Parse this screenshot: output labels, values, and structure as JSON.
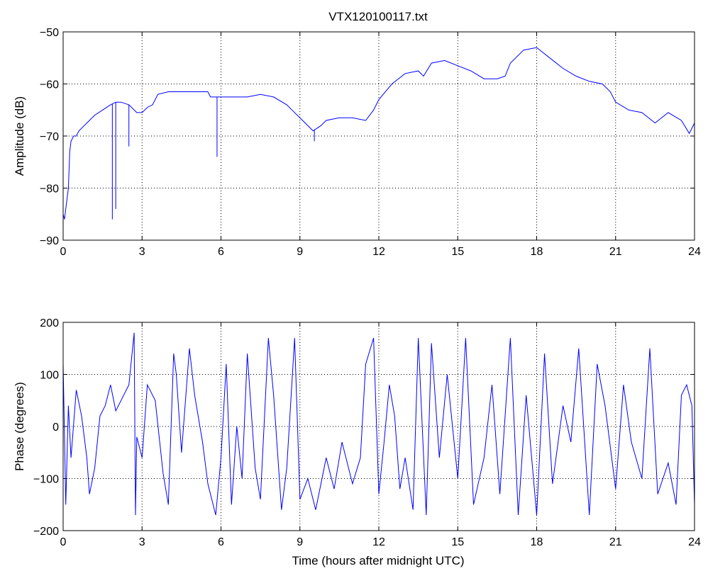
{
  "chart_data": [
    {
      "type": "line",
      "title": "VTX120100117.txt",
      "xlabel": "",
      "ylabel": "Amplitude (dB)",
      "xlim": [
        0,
        24
      ],
      "ylim": [
        -90,
        -50
      ],
      "xticks": [
        0,
        3,
        6,
        9,
        12,
        15,
        18,
        21,
        24
      ],
      "yticks": [
        -90,
        -80,
        -70,
        -60,
        -50
      ],
      "xtick_labels": [
        "0",
        "3",
        "6",
        "9",
        "12",
        "15",
        "18",
        "21",
        "24"
      ],
      "ytick_labels": [
        "−90",
        "−80",
        "−70",
        "−60",
        "−50"
      ],
      "grid": "dotted",
      "series": [
        {
          "color": "#0000ff",
          "x": [
            0,
            0.05,
            0.1,
            0.2,
            0.25,
            0.3,
            0.4,
            0.5,
            0.6,
            0.8,
            1.0,
            1.2,
            1.5,
            1.8,
            2.0,
            2.2,
            2.5,
            2.8,
            3.0,
            3.2,
            3.4,
            3.6,
            4.0,
            4.5,
            5.0,
            5.5,
            5.6,
            6.0,
            6.5,
            7.0,
            7.5,
            8.0,
            8.5,
            8.7,
            9.0,
            9.2,
            9.5,
            9.8,
            10.0,
            10.5,
            11.0,
            11.5,
            11.8,
            12.0,
            12.5,
            13.0,
            13.5,
            13.7,
            14.0,
            14.5,
            15.0,
            15.5,
            16.0,
            16.5,
            16.8,
            17.0,
            17.5,
            18.0,
            18.5,
            19.0,
            19.5,
            20.0,
            20.5,
            20.8,
            21.0,
            21.5,
            22.0,
            22.5,
            23.0,
            23.5,
            23.8,
            24.0
          ],
          "y": [
            -85,
            -86,
            -84,
            -80,
            -73,
            -71,
            -70,
            -70,
            -69,
            -68,
            -67,
            -66,
            -65,
            -64,
            -63.5,
            -63.5,
            -64,
            -65.5,
            -65.5,
            -64.5,
            -64,
            -62,
            -61.5,
            -61.5,
            -61.5,
            -61.5,
            -62.5,
            -62.5,
            -62.5,
            -62.5,
            -62,
            -62.5,
            -64,
            -65,
            -66.5,
            -67.5,
            -69,
            -68,
            -67,
            -66.5,
            -66.5,
            -67,
            -65,
            -63,
            -60,
            -58,
            -57.5,
            -58.5,
            -56,
            -55.5,
            -56.5,
            -57.5,
            -59,
            -59,
            -58.5,
            -56,
            -53.5,
            -53,
            -55,
            -57,
            -58.5,
            -59.5,
            -60,
            -61.5,
            -63.5,
            -65,
            -65.5,
            -67.5,
            -65.5,
            -67,
            -69.5,
            -67.5
          ]
        }
      ],
      "spikes": [
        {
          "x": 1.87,
          "y": -86
        },
        {
          "x": 2.0,
          "y": -84
        },
        {
          "x": 2.5,
          "y": -72
        },
        {
          "x": 5.85,
          "y": -74
        },
        {
          "x": 9.55,
          "y": -71
        }
      ]
    },
    {
      "type": "line",
      "title": "",
      "xlabel": "Time (hours after midnight UTC)",
      "ylabel": "Phase (degrees)",
      "xlim": [
        0,
        24
      ],
      "ylim": [
        -200,
        200
      ],
      "xticks": [
        0,
        3,
        6,
        9,
        12,
        15,
        18,
        21,
        24
      ],
      "yticks": [
        -200,
        -100,
        0,
        100,
        200
      ],
      "xtick_labels": [
        "0",
        "3",
        "6",
        "9",
        "12",
        "15",
        "18",
        "21",
        "24"
      ],
      "ytick_labels": [
        "−200",
        "−100",
        "0",
        "100",
        "200"
      ],
      "grid": "dotted",
      "series": [
        {
          "color": "#0000ff",
          "x": [
            0,
            0.1,
            0.2,
            0.3,
            0.5,
            0.7,
            0.9,
            1.0,
            1.2,
            1.4,
            1.6,
            1.8,
            2.0,
            2.2,
            2.5,
            2.7,
            2.75,
            2.8,
            3.0,
            3.2,
            3.5,
            3.8,
            4.0,
            4.2,
            4.3,
            4.5,
            4.8,
            5.0,
            5.3,
            5.5,
            5.8,
            6.0,
            6.2,
            6.4,
            6.6,
            6.8,
            7.0,
            7.3,
            7.5,
            7.8,
            8.0,
            8.3,
            8.5,
            8.8,
            9.0,
            9.3,
            9.6,
            10.0,
            10.3,
            10.6,
            11.0,
            11.3,
            11.5,
            11.8,
            12.0,
            12.2,
            12.4,
            12.6,
            12.8,
            13.0,
            13.3,
            13.5,
            13.8,
            14.0,
            14.3,
            14.6,
            15.0,
            15.3,
            15.6,
            16.0,
            16.3,
            16.6,
            17.0,
            17.3,
            17.6,
            18.0,
            18.3,
            18.6,
            19.0,
            19.3,
            19.6,
            20.0,
            20.3,
            20.6,
            21.0,
            21.3,
            21.6,
            22.0,
            22.3,
            22.6,
            23.0,
            23.3,
            23.5,
            23.7,
            23.9,
            24.0
          ],
          "y": [
            120,
            -150,
            40,
            -60,
            70,
            20,
            -60,
            -130,
            -80,
            20,
            40,
            80,
            30,
            50,
            80,
            180,
            -170,
            -20,
            -60,
            80,
            50,
            -90,
            -150,
            140,
            100,
            -50,
            150,
            60,
            -30,
            -110,
            -170,
            -60,
            120,
            -150,
            0,
            -100,
            140,
            -80,
            -140,
            170,
            60,
            -160,
            -80,
            170,
            -140,
            -100,
            -160,
            -60,
            -120,
            -30,
            -110,
            -60,
            120,
            170,
            -130,
            -30,
            80,
            20,
            -120,
            -60,
            -160,
            170,
            -170,
            160,
            -60,
            100,
            -100,
            170,
            -150,
            -60,
            80,
            -130,
            170,
            -170,
            60,
            -170,
            140,
            -110,
            40,
            -30,
            150,
            -170,
            120,
            40,
            -120,
            80,
            -30,
            -100,
            150,
            -130,
            -70,
            -150,
            60,
            80,
            40,
            -150
          ]
        }
      ]
    }
  ]
}
